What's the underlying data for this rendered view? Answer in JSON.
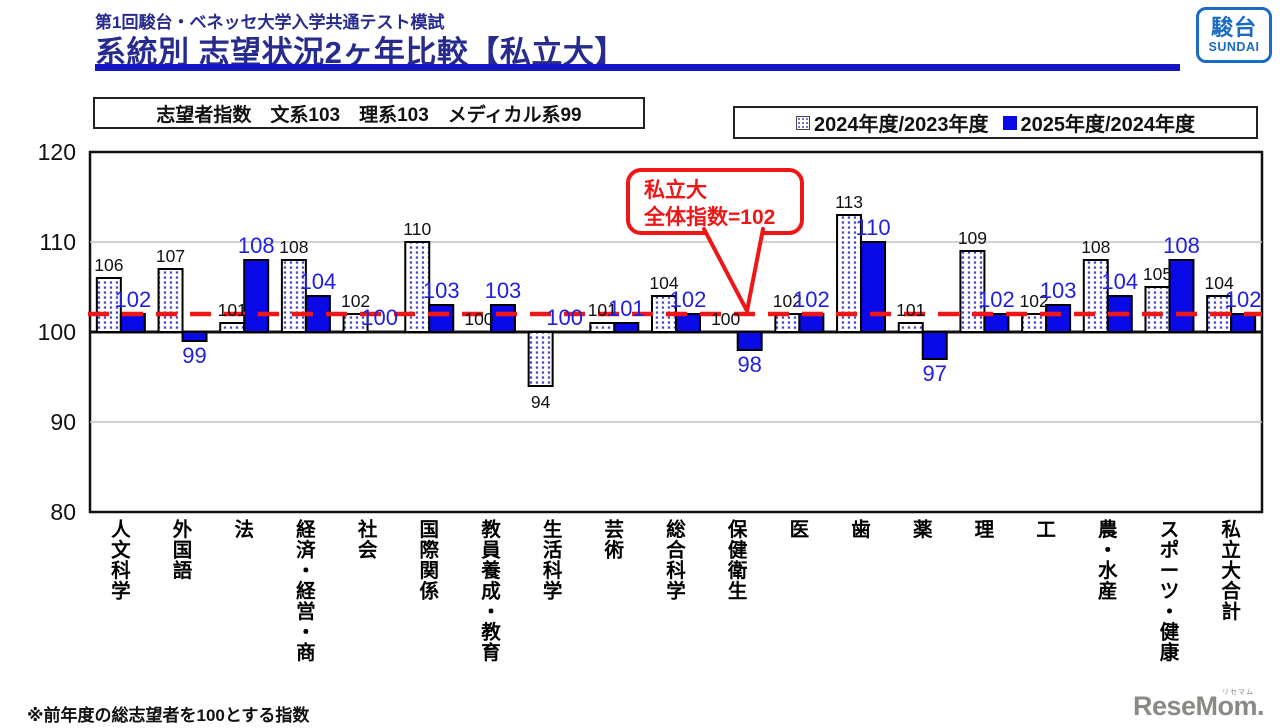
{
  "header": {
    "subtitle_small": "第1回駿台・ベネッセ大学入学共通テスト模試",
    "title": "系統別 志望状況2ヶ年比較【私立大】",
    "logo": {
      "kanji": "駿台",
      "roman": "SUNDAI"
    }
  },
  "info_box": {
    "text": "志望者指数　文系103　理系103　メディカル系99"
  },
  "legend": [
    {
      "label": "2024年度/2023年度",
      "style": "dotted"
    },
    {
      "label": "2025年度/2024年度",
      "style": "solid"
    }
  ],
  "annotation": {
    "line1": "私立大",
    "line2": "全体指数=102",
    "target_value": 102
  },
  "footnote": "※前年度の総志望者を100とする指数",
  "watermark": {
    "text": "ReseMom.",
    "ruby": "リセマム"
  },
  "colors": {
    "navy": "#272b8d",
    "underline_blue": "#1515c4",
    "logo_blue": "#1a6bc4",
    "bar_blue": "#0a0ae8",
    "label_blue": "#2020dd",
    "red": "#ee1616",
    "grid_gray": "#c4c4c4",
    "dot_blue": "#4646cc",
    "black": "#111111"
  },
  "chart_data": {
    "type": "bar",
    "title": "系統別 志望状況2ヶ年比較【私立大】",
    "categories": [
      "人文科学",
      "外国語",
      "法",
      "経済・経営・商",
      "社会",
      "国際関係",
      "教員養成・教育",
      "生活科学",
      "芸術",
      "総合科学",
      "保健衛生",
      "医",
      "歯",
      "薬",
      "理",
      "工",
      "農・水産",
      "スポーツ・健康",
      "私立大合計"
    ],
    "series": [
      {
        "name": "2024年度/2023年度",
        "values": [
          106,
          107,
          101,
          108,
          102,
          110,
          100,
          94,
          101,
          104,
          100,
          102,
          113,
          101,
          109,
          102,
          108,
          105,
          104
        ]
      },
      {
        "name": "2025年度/2024年度",
        "values": [
          102,
          99,
          108,
          104,
          100,
          103,
          103,
          100,
          101,
          102,
          98,
          102,
          110,
          97,
          102,
          103,
          104,
          108,
          102
        ]
      }
    ],
    "baseline": 100,
    "reference_line": 102,
    "ylim": [
      80,
      120
    ],
    "yticks": [
      80,
      90,
      100,
      110,
      120
    ],
    "grid": "horizontal",
    "legend_position": "top-right"
  }
}
